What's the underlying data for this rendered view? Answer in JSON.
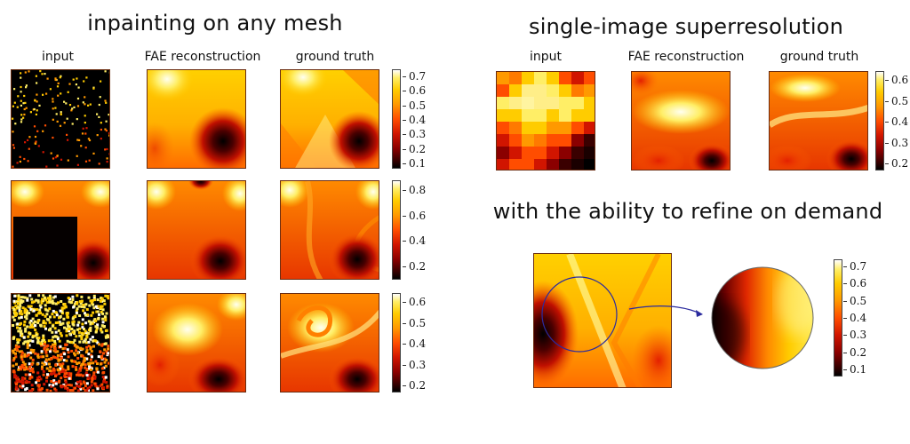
{
  "left_section": {
    "title": "inpainting on any mesh",
    "col_labels": [
      "input",
      "FAE reconstruction",
      "ground truth"
    ],
    "rows": [
      {
        "colorbar_ticks": [
          "0.7",
          "0.6",
          "0.5",
          "0.4",
          "0.3",
          "0.2",
          "0.1"
        ]
      },
      {
        "colorbar_ticks": [
          "0.8",
          "0.6",
          "0.4",
          "0.2"
        ]
      },
      {
        "colorbar_ticks": [
          "0.6",
          "0.5",
          "0.4",
          "0.3",
          "0.2"
        ]
      }
    ]
  },
  "right_section": {
    "title": "single-image superresolution",
    "col_labels": [
      "input",
      "FAE reconstruction",
      "ground truth"
    ],
    "colorbar_ticks": [
      "0.6",
      "0.5",
      "0.4",
      "0.3",
      "0.2"
    ],
    "refine_title": "with the ability to refine on demand",
    "refine_colorbar_ticks": [
      "0.7",
      "0.6",
      "0.5",
      "0.4",
      "0.3",
      "0.2",
      "0.1"
    ]
  },
  "colors": {
    "colormap": [
      "#000000",
      "#8b0000",
      "#d11500",
      "#ff4d00",
      "#ff9900",
      "#ffcc00",
      "#ffee66",
      "#ffffff"
    ],
    "zoom_circle": "#2b2b9e"
  }
}
